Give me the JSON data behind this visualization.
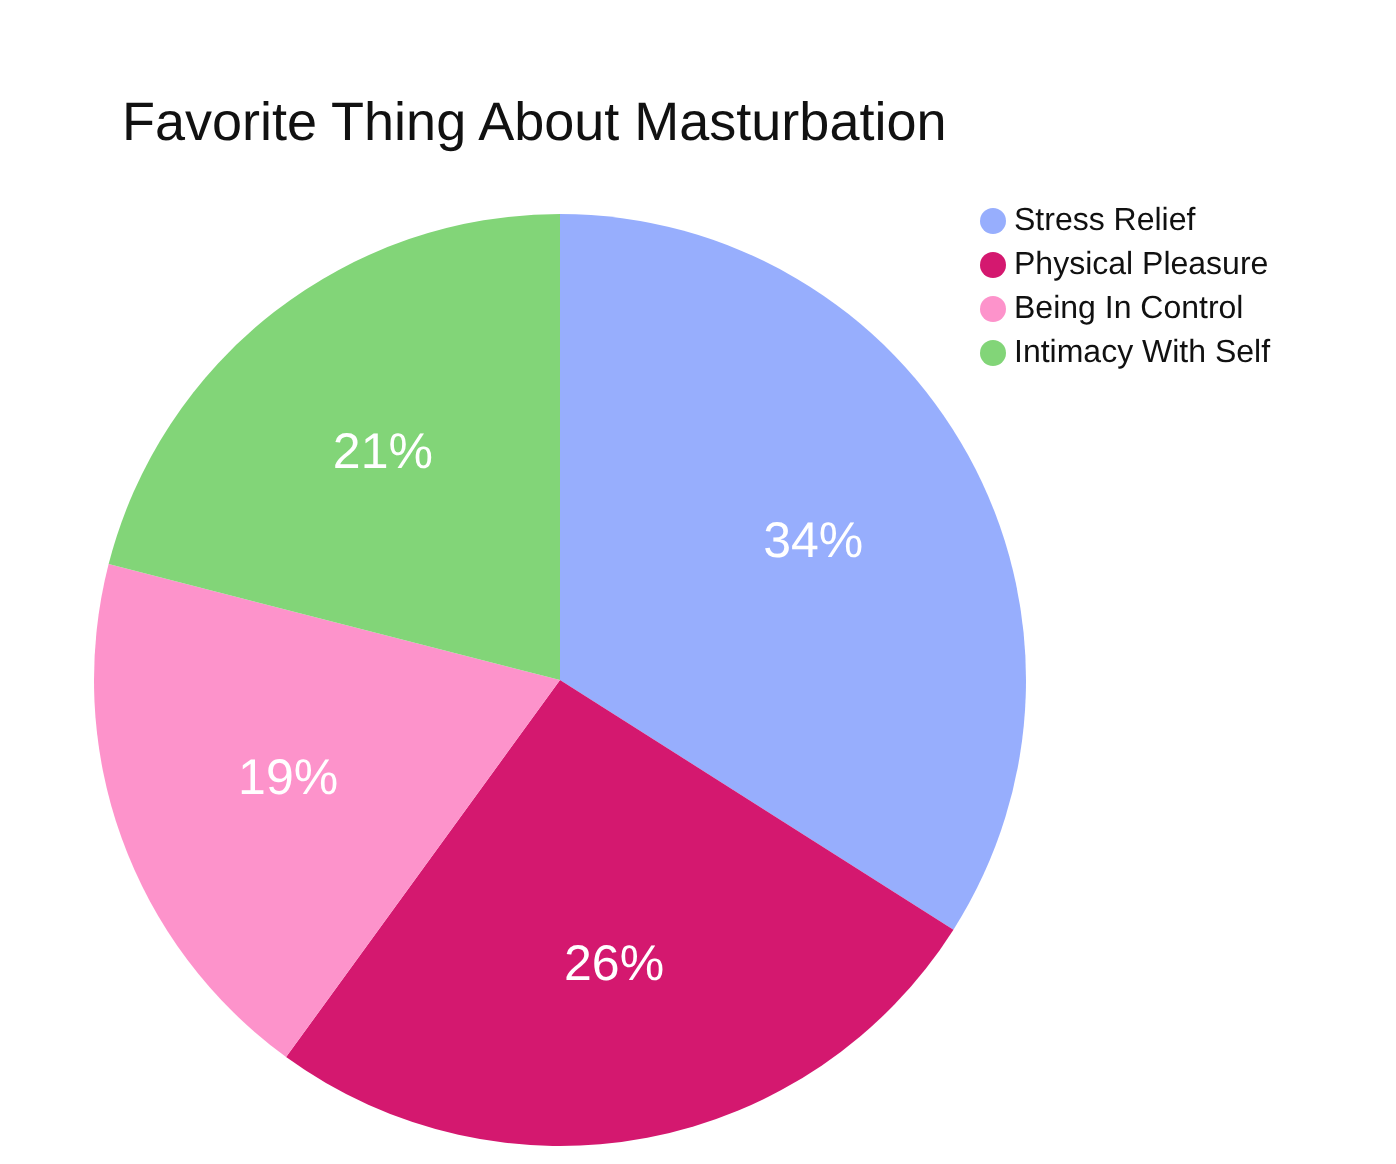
{
  "chart_data": {
    "type": "pie",
    "title": "Favorite Thing About Masturbation",
    "categories": [
      "Stress Relief",
      "Physical Pleasure",
      "Being In Control",
      "Intimacy With Self"
    ],
    "values": [
      34,
      26,
      19,
      21
    ],
    "value_labels": [
      "34%",
      "26%",
      "19%",
      "21%"
    ],
    "colors": [
      "#97aefd",
      "#d4186f",
      "#fd93cb",
      "#82d578"
    ],
    "legend": "top right"
  }
}
